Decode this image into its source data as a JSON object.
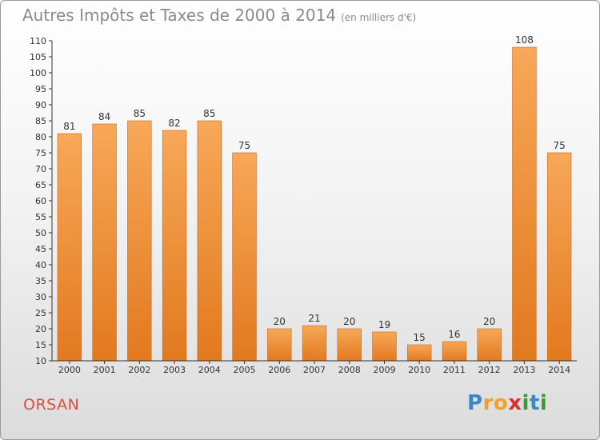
{
  "header": {
    "title": "Autres Impôts et Taxes de 2000 à 2014",
    "subtitle": "(en milliers d'€)"
  },
  "footer": {
    "town": "ORSAN",
    "logo_letters": [
      "P",
      "r",
      "o",
      "x",
      "i",
      "t",
      "i"
    ],
    "logo_colors": [
      "#3a86c8",
      "#f0a030",
      "#f0a030",
      "#d93030",
      "#3a9a3a",
      "#3a86c8",
      "#3a9a3a"
    ]
  },
  "colors": {
    "bar_fill_light": "#f7a858",
    "bar_fill_dark": "#e2791f",
    "bar_stroke": "#c8651a",
    "axis": "#333333",
    "gridline": "#d8d8d8",
    "label": "#333333"
  },
  "chart_data": {
    "type": "bar",
    "title": "Autres Impôts et Taxes de 2000 à 2014",
    "subtitle": "(en milliers d'€)",
    "xlabel": "",
    "ylabel": "",
    "categories": [
      "2000",
      "2001",
      "2002",
      "2003",
      "2004",
      "2005",
      "2006",
      "2007",
      "2008",
      "2009",
      "2010",
      "2011",
      "2012",
      "2013",
      "2014"
    ],
    "values": [
      81,
      84,
      85,
      82,
      85,
      75,
      20,
      21,
      20,
      19,
      15,
      16,
      20,
      108,
      75
    ],
    "ylim": [
      10,
      110
    ],
    "yticks": [
      10,
      15,
      20,
      25,
      30,
      35,
      40,
      45,
      50,
      55,
      60,
      65,
      70,
      75,
      80,
      85,
      90,
      95,
      100,
      105,
      110
    ],
    "grid": false,
    "data_labels": true
  }
}
